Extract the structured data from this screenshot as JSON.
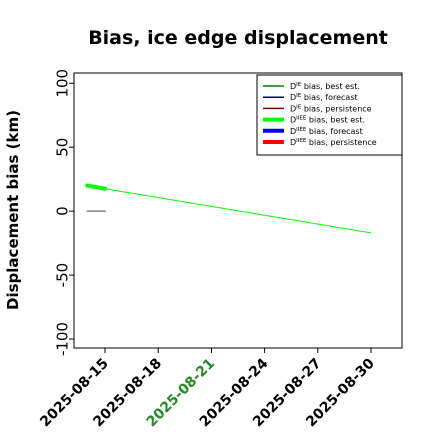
{
  "chart_data": {
    "type": "line",
    "title": "Bias, ice edge displacement",
    "xlabel": "",
    "ylabel": "Displacement bias (km)",
    "ylim": [
      -107,
      108
    ],
    "xlim": [
      "2025-08-13T06:00",
      "2025-08-31T18:00"
    ],
    "x_ticks": [
      {
        "label": "2025-08-15",
        "date": "2025-08-15",
        "color": "#000000"
      },
      {
        "label": "2025-08-18",
        "date": "2025-08-18",
        "color": "#000000"
      },
      {
        "label": "2025-08-21",
        "date": "2025-08-21",
        "color": "#228b22"
      },
      {
        "label": "2025-08-24",
        "date": "2025-08-24",
        "color": "#000000"
      },
      {
        "label": "2025-08-27",
        "date": "2025-08-27",
        "color": "#000000"
      },
      {
        "label": "2025-08-30",
        "date": "2025-08-30",
        "color": "#000000"
      }
    ],
    "y_ticks": [
      100,
      50,
      0,
      -50,
      -100
    ],
    "legend_position": "upper right",
    "series": [
      {
        "label_main": "D",
        "label_sup": "IE",
        "label_rest": " bias, best est.",
        "color": "#008000",
        "width": 1.5,
        "points": []
      },
      {
        "label_main": "D",
        "label_sup": "IE",
        "label_rest": " bias, forecast",
        "color": "#00008b",
        "width": 1.5,
        "points": []
      },
      {
        "label_main": "D",
        "label_sup": "IE",
        "label_rest": " bias, persistence",
        "color": "#8b0000",
        "width": 1.5,
        "points": []
      },
      {
        "label_main": "D",
        "label_sup": "IIEE",
        "label_rest": " bias, best est.",
        "color": "#00ff00",
        "width": 4,
        "points": [
          [
            "2025-08-14",
            20
          ],
          [
            "2025-08-15",
            17.5
          ]
        ]
      },
      {
        "label_main": "D",
        "label_sup": "IIEE",
        "label_rest": " bias, forecast",
        "color": "#00ff00",
        "width": 1,
        "legend_color": "#0000ff",
        "legend_width": 4,
        "points": [
          [
            "2025-08-15",
            17.5
          ],
          [
            "2025-08-30",
            -17
          ]
        ]
      },
      {
        "label_main": "D",
        "label_sup": "IIEE",
        "label_rest": " bias, persistence",
        "color": "#808080",
        "width": 1.5,
        "legend_color": "#ff0000",
        "legend_width": 4,
        "points": [
          [
            "2025-08-14",
            0
          ],
          [
            "2025-08-15",
            0
          ]
        ]
      }
    ]
  }
}
